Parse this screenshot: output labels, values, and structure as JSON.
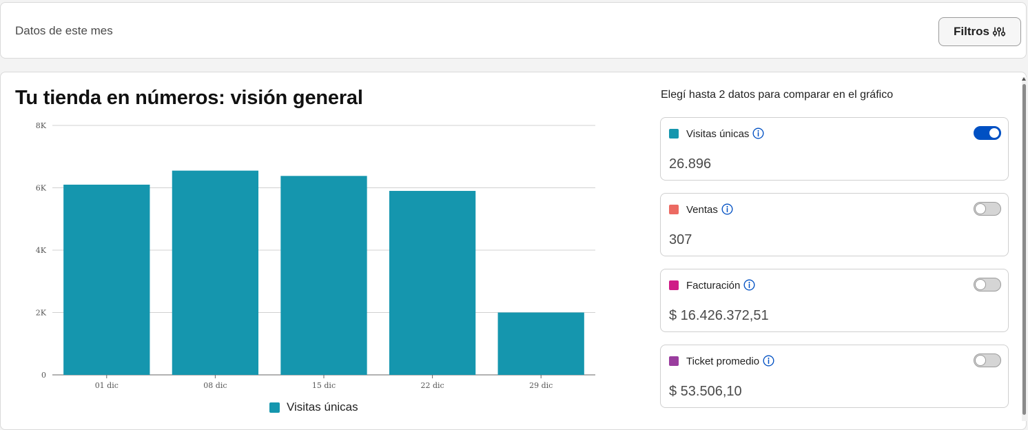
{
  "header": {
    "period_label": "Datos de este mes",
    "filter_button": {
      "label": "Filtros",
      "icon": "sliders-icon"
    }
  },
  "overview": {
    "title": "Tu tienda en números: visión general",
    "compare_instruction": "Elegí hasta 2 datos para comparar en el gráfico"
  },
  "metrics": [
    {
      "name": "Visitas únicas",
      "value": "26.896",
      "color": "#1596ae",
      "enabled": true,
      "info_icon": "info-icon"
    },
    {
      "name": "Ventas",
      "value": "307",
      "color": "#ec6a62",
      "enabled": false,
      "info_icon": "info-icon"
    },
    {
      "name": "Facturación",
      "value": "$ 16.426.372,51",
      "color": "#cf1b87",
      "enabled": false,
      "info_icon": "info-icon"
    },
    {
      "name": "Ticket promedio",
      "value": "$ 53.506,10",
      "color": "#9a3d9e",
      "enabled": false,
      "info_icon": "info-icon"
    }
  ],
  "chart_data": {
    "type": "bar",
    "categories": [
      "01 dic",
      "08 dic",
      "15 dic",
      "22 dic",
      "29 dic"
    ],
    "series": [
      {
        "name": "Visitas únicas",
        "values": [
          6100,
          6550,
          6380,
          5900,
          2000
        ],
        "color": "#1596ae"
      }
    ],
    "yticks": [
      0,
      2000,
      4000,
      6000,
      8000
    ],
    "ytick_labels": [
      "0",
      "2K",
      "4K",
      "6K",
      "8K"
    ],
    "ylim": [
      0,
      8000
    ],
    "grid": true,
    "legend_position": "bottom-center"
  },
  "colors": {
    "accent": "#0050c3",
    "bar": "#1596ae"
  }
}
